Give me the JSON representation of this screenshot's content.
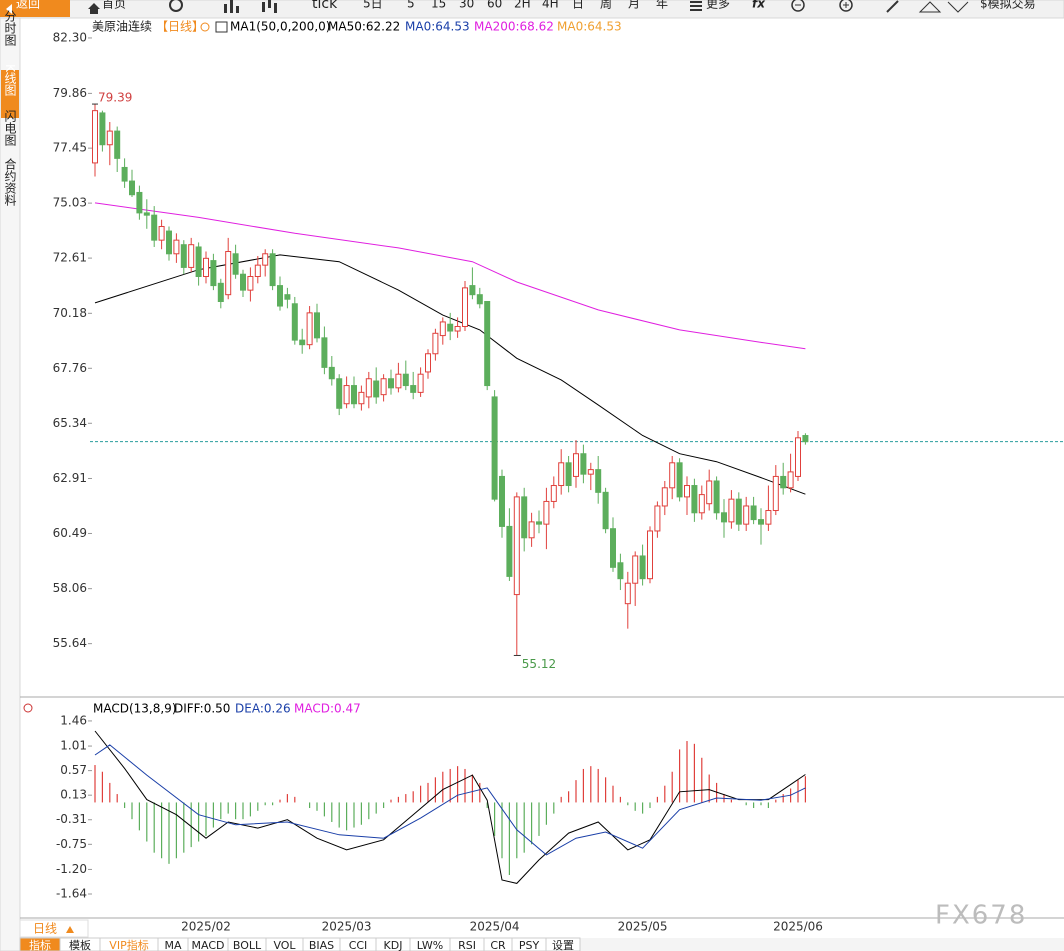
{
  "toolbar": [
    "返回",
    "首页",
    "tick",
    "5日",
    "5",
    "15",
    "30",
    "60",
    "2H",
    "4H",
    "日",
    "周",
    "月",
    "年",
    "更多",
    "$模拟交易"
  ],
  "side_tabs": [
    "分时图",
    "K线图",
    "闪电图",
    "合约资料"
  ],
  "chart_data": [
    {
      "type": "candlestick",
      "title": "美原油连续",
      "period": "【日线】",
      "legend": [
        {
          "text": "MA1(50,0,200,0)",
          "color": "#000000"
        },
        {
          "text": "MA50:62.22",
          "color": "#000000"
        },
        {
          "text": "MA0:64.53",
          "color": "#1a3fa8"
        },
        {
          "text": "MA200:68.62",
          "color": "#e020e0"
        },
        {
          "text": "MA0:64.53",
          "color": "#f0a030"
        }
      ],
      "up_color": "#e0403c",
      "down_color": "#5cae5c",
      "last_price_color": "#2a9d9d",
      "categories": [
        null,
        null,
        null,
        null,
        null,
        null,
        null,
        null,
        null,
        null,
        null,
        null,
        null,
        null,
        null,
        "2025/02",
        null,
        null,
        null,
        null,
        null,
        null,
        null,
        null,
        null,
        null,
        null,
        null,
        null,
        null,
        null,
        null,
        null,
        null,
        "2025/03",
        null,
        null,
        null,
        null,
        null,
        null,
        null,
        null,
        null,
        null,
        null,
        null,
        null,
        null,
        null,
        null,
        null,
        null,
        null,
        "2025/04",
        null,
        null,
        null,
        null,
        null,
        null,
        null,
        null,
        null,
        null,
        null,
        null,
        null,
        null,
        null,
        null,
        null,
        null,
        null,
        "2025/05",
        null,
        null,
        null,
        null,
        null,
        null,
        null,
        null,
        null,
        null,
        null,
        null,
        null,
        null,
        null,
        null,
        null,
        null,
        null,
        null,
        "2025/06",
        null
      ],
      "open": [
        76.8,
        79.0,
        77.6,
        78.2,
        76.6,
        76.0,
        75.5,
        74.6,
        74.5,
        73.4,
        73.8,
        72.8,
        73.2,
        72.2,
        73.1,
        71.8,
        72.5,
        71.5,
        71.0,
        72.8,
        71.9,
        71.2,
        71.8,
        72.3,
        72.8,
        71.4,
        71.0,
        70.6,
        69.0,
        68.8,
        70.2,
        69.1,
        67.8,
        67.3,
        66.2,
        67.0,
        66.2,
        66.5,
        67.2,
        66.6,
        67.3,
        66.9,
        67.5,
        67.0,
        66.7,
        67.6,
        68.4,
        69.2,
        69.7,
        69.4,
        69.6,
        71.4,
        71.0,
        70.7,
        66.5,
        63.0,
        60.8,
        57.8,
        62.1,
        60.3,
        61.0,
        60.9,
        61.9,
        62.6,
        63.6,
        63.0,
        64.0,
        63.1,
        63.3,
        62.3,
        60.7,
        59.2,
        57.4,
        58.3,
        59.5,
        58.5,
        60.6,
        61.7,
        62.5,
        63.6,
        62.1,
        62.6,
        61.4,
        61.8,
        62.8,
        61.4,
        61.0,
        62.0,
        60.9,
        61.7,
        61.1,
        60.9,
        61.5,
        63.0,
        62.5,
        63.0,
        64.8
      ],
      "high": [
        79.39,
        79.1,
        78.6,
        78.4,
        77.0,
        76.5,
        75.8,
        75.2,
        74.9,
        74.3,
        74.0,
        73.7,
        73.4,
        73.5,
        73.3,
        72.9,
        72.8,
        71.7,
        73.5,
        73.2,
        72.1,
        72.2,
        72.7,
        73.0,
        73.0,
        71.8,
        71.3,
        70.9,
        69.5,
        70.5,
        70.6,
        69.6,
        68.3,
        67.5,
        67.4,
        67.4,
        67.0,
        67.6,
        67.8,
        67.5,
        67.7,
        68.0,
        68.1,
        67.6,
        67.8,
        68.6,
        69.5,
        70.0,
        70.2,
        70.0,
        71.6,
        72.2,
        71.3,
        70.7,
        66.8,
        63.3,
        61.6,
        62.3,
        62.5,
        61.4,
        61.5,
        62.5,
        63.0,
        64.2,
        63.9,
        64.6,
        64.4,
        63.6,
        63.9,
        62.5,
        61.2,
        59.6,
        58.8,
        59.7,
        60.0,
        60.8,
        61.9,
        62.8,
        63.9,
        63.8,
        63.0,
        62.9,
        62.6,
        63.3,
        63.0,
        62.0,
        62.4,
        62.3,
        62.1,
        62.1,
        61.6,
        62.6,
        63.5,
        63.6,
        64.0,
        65.0,
        64.9
      ],
      "low": [
        76.2,
        77.3,
        76.7,
        76.4,
        75.7,
        75.3,
        74.3,
        73.9,
        73.1,
        73.0,
        72.5,
        72.4,
        71.9,
        72.0,
        71.4,
        71.5,
        71.2,
        70.4,
        70.8,
        71.7,
        70.9,
        70.7,
        71.5,
        71.8,
        71.2,
        70.3,
        70.4,
        68.8,
        68.4,
        68.6,
        68.9,
        67.5,
        67.0,
        65.7,
        66.0,
        66.0,
        65.9,
        66.0,
        66.2,
        66.3,
        66.6,
        66.7,
        66.8,
        66.4,
        66.5,
        67.3,
        68.1,
        68.8,
        69.0,
        69.1,
        69.4,
        70.8,
        70.4,
        66.8,
        61.9,
        60.3,
        58.4,
        55.12,
        59.7,
        59.9,
        60.5,
        59.8,
        61.6,
        62.2,
        62.3,
        62.5,
        62.7,
        62.4,
        61.8,
        60.5,
        58.8,
        58.0,
        56.3,
        57.3,
        58.2,
        58.3,
        60.3,
        61.3,
        62.0,
        61.9,
        61.3,
        61.0,
        61.1,
        61.5,
        61.1,
        60.3,
        60.7,
        60.6,
        60.6,
        60.9,
        60.0,
        60.6,
        61.3,
        62.2,
        62.3,
        62.8,
        64.4
      ],
      "close": [
        79.1,
        77.6,
        78.2,
        77.0,
        76.0,
        75.4,
        74.6,
        74.5,
        73.4,
        74.0,
        72.8,
        73.4,
        72.2,
        73.2,
        71.8,
        72.6,
        71.4,
        70.7,
        72.9,
        71.9,
        71.2,
        71.8,
        72.3,
        72.8,
        71.4,
        70.5,
        70.8,
        69.0,
        68.8,
        70.2,
        69.1,
        67.8,
        67.3,
        66.0,
        67.0,
        66.2,
        66.7,
        67.3,
        66.5,
        67.3,
        66.9,
        67.5,
        67.0,
        66.7,
        67.5,
        68.4,
        69.3,
        69.8,
        69.4,
        69.6,
        71.3,
        71.0,
        70.6,
        67.0,
        62.0,
        60.8,
        58.6,
        62.1,
        60.3,
        61.0,
        60.9,
        61.9,
        62.6,
        63.6,
        62.6,
        64.0,
        63.1,
        63.3,
        62.3,
        60.7,
        59.0,
        58.5,
        58.3,
        59.5,
        58.5,
        60.6,
        61.7,
        62.5,
        63.6,
        62.1,
        62.6,
        61.4,
        62.2,
        62.8,
        61.4,
        61.0,
        62.0,
        60.9,
        61.7,
        61.1,
        60.9,
        61.5,
        63.0,
        62.5,
        63.2,
        64.7,
        64.53
      ],
      "series": [
        {
          "color": "#000000",
          "x": [
            0,
            14,
            25,
            33,
            41,
            47,
            52,
            57,
            63,
            68,
            74,
            79,
            84,
            90,
            96
          ],
          "values": [
            70.64,
            72.1,
            72.75,
            72.45,
            71.2,
            70.1,
            69.45,
            68.2,
            67.25,
            66.15,
            64.8,
            64.0,
            63.65,
            62.95,
            62.22
          ]
        },
        {
          "color": "#e020e0",
          "x": [
            0,
            14,
            27,
            41,
            51,
            57,
            68,
            79,
            90,
            96
          ],
          "values": [
            75.04,
            74.4,
            73.7,
            73.06,
            72.45,
            71.56,
            70.33,
            69.45,
            68.9,
            68.62
          ]
        }
      ],
      "ylim": [
        53.6,
        82.65
      ],
      "yticks": [
        {
          "value": 82.3,
          "label": "82.30"
        },
        79.86,
        77.45,
        75.03,
        72.61,
        70.18,
        67.76,
        65.34,
        62.91,
        60.49,
        58.06,
        55.64
      ]
    },
    {
      "type": "macd",
      "legend": [
        {
          "text": "MACD(13,8,9)",
          "color": "#000000"
        },
        {
          "text": "DIFF:0.50",
          "color": "#000000"
        },
        {
          "text": "DEA:0.26",
          "color": "#1a3fa8"
        },
        {
          "text": "MACD:0.47",
          "color": "#e020e0"
        }
      ],
      "up_color": "#e0403c",
      "down_color": "#5cae5c",
      "histogram": [
        0.67,
        0.55,
        0.35,
        0.15,
        -0.1,
        -0.3,
        -0.5,
        -0.7,
        -0.9,
        -1.0,
        -1.1,
        -1.0,
        -0.9,
        -0.8,
        -0.7,
        -0.6,
        -0.45,
        -0.3,
        -0.2,
        -0.3,
        -0.3,
        -0.25,
        -0.15,
        -0.05,
        -0.05,
        0.05,
        0.15,
        0.1,
        0.0,
        -0.1,
        -0.15,
        -0.25,
        -0.35,
        -0.45,
        -0.5,
        -0.45,
        -0.4,
        -0.3,
        -0.2,
        -0.1,
        0.05,
        0.1,
        0.15,
        0.2,
        0.3,
        0.35,
        0.45,
        0.55,
        0.6,
        0.65,
        0.6,
        0.5,
        0.35,
        -0.1,
        -0.6,
        -1.0,
        -1.3,
        -1.0,
        -0.9,
        -0.75,
        -0.6,
        -0.4,
        -0.2,
        0.1,
        0.2,
        0.4,
        0.6,
        0.65,
        0.6,
        0.45,
        0.3,
        0.1,
        -0.05,
        -0.15,
        -0.2,
        -0.1,
        0.1,
        0.3,
        0.55,
        0.95,
        1.1,
        1.05,
        0.8,
        0.5,
        0.35,
        0.15,
        0.05,
        0.0,
        -0.05,
        -0.1,
        -0.05,
        -0.1,
        0.05,
        0.15,
        0.25,
        0.4,
        0.47
      ],
      "series": [
        {
          "color": "#000000",
          "x": [
            0,
            4,
            7,
            11,
            15,
            18,
            22,
            26,
            30,
            34,
            39,
            43,
            47,
            51,
            53,
            55,
            57,
            60,
            64,
            68,
            72,
            75,
            79,
            83,
            87,
            91,
            94,
            96
          ],
          "values": [
            1.28,
            0.61,
            0.05,
            -0.22,
            -0.64,
            -0.35,
            -0.46,
            -0.31,
            -0.64,
            -0.85,
            -0.67,
            -0.22,
            0.23,
            0.49,
            0.04,
            -1.39,
            -1.45,
            -1.03,
            -0.55,
            -0.35,
            -0.85,
            -0.67,
            0.19,
            0.23,
            0.05,
            0.05,
            0.32,
            0.5
          ]
        },
        {
          "color": "#1a3fa8",
          "x": [
            0,
            2,
            7,
            14,
            19,
            26,
            33,
            39,
            44,
            49,
            53,
            57,
            61,
            65,
            69,
            74,
            79,
            84,
            90,
            94,
            96
          ],
          "values": [
            0.85,
            1.03,
            0.49,
            -0.22,
            -0.4,
            -0.35,
            -0.58,
            -0.64,
            -0.28,
            0.13,
            0.26,
            -0.49,
            -0.94,
            -0.64,
            -0.53,
            -0.82,
            -0.13,
            0.08,
            0.04,
            0.13,
            0.26
          ]
        }
      ],
      "ylim": [
        -2.07,
        1.62
      ],
      "yticks": [
        1.46,
        1.01,
        0.57,
        0.13,
        -0.31,
        -0.75,
        {
          "value": -1.2,
          "label": "-1.20"
        },
        -1.64
      ]
    }
  ],
  "bottom_period": "日线",
  "bottom_tabs": [
    "指标",
    "模板",
    "VIP指标",
    "MA",
    "MACD",
    "BOLL",
    "VOL",
    "BIAS",
    "CCI",
    "KDJ",
    "LW%",
    "RSI",
    "CR",
    "PSY",
    "设置"
  ],
  "watermark": "FX678"
}
